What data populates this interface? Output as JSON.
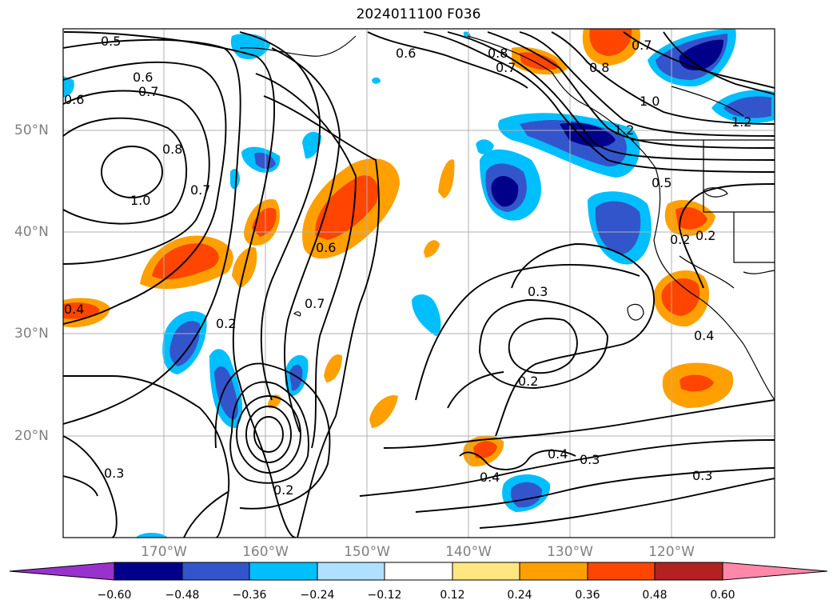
{
  "title": "2024011100 F036",
  "lat_labels": [
    "50°N",
    "40°N",
    "30°N",
    "20°N"
  ],
  "lon_labels": [
    "170°W",
    "160°W",
    "150°W",
    "140°W",
    "130°W",
    "120°W"
  ],
  "colorbar": {
    "ticks": [
      "−0.60",
      "−0.48",
      "−0.36",
      "−0.24",
      "−0.12",
      "0.12",
      "0.24",
      "0.36",
      "0.48",
      "0.60"
    ],
    "colors": [
      "#9932cc",
      "#00008b",
      "#3355cc",
      "#00bfff",
      "#b0e0ff",
      "#ffffff",
      "#ffe680",
      "#ffa000",
      "#ff4500",
      "#b22222",
      "#ff88aa"
    ]
  },
  "contour_labels": [
    "0.5",
    "0.6",
    "0.6",
    "0.7",
    "0.8",
    "1.0",
    "0.7",
    "0.6",
    "0.4",
    "0.2",
    "0.7",
    "0.3",
    "0.2",
    "0.3",
    "0.2",
    "0.4",
    "0.4",
    "0.3",
    "0.3",
    "0.8",
    "0.7",
    "0.6",
    "0.7",
    "0.8",
    "1.0",
    "1.2",
    "1.2",
    "0.5",
    "0.2",
    "0.4",
    "0.2"
  ]
}
